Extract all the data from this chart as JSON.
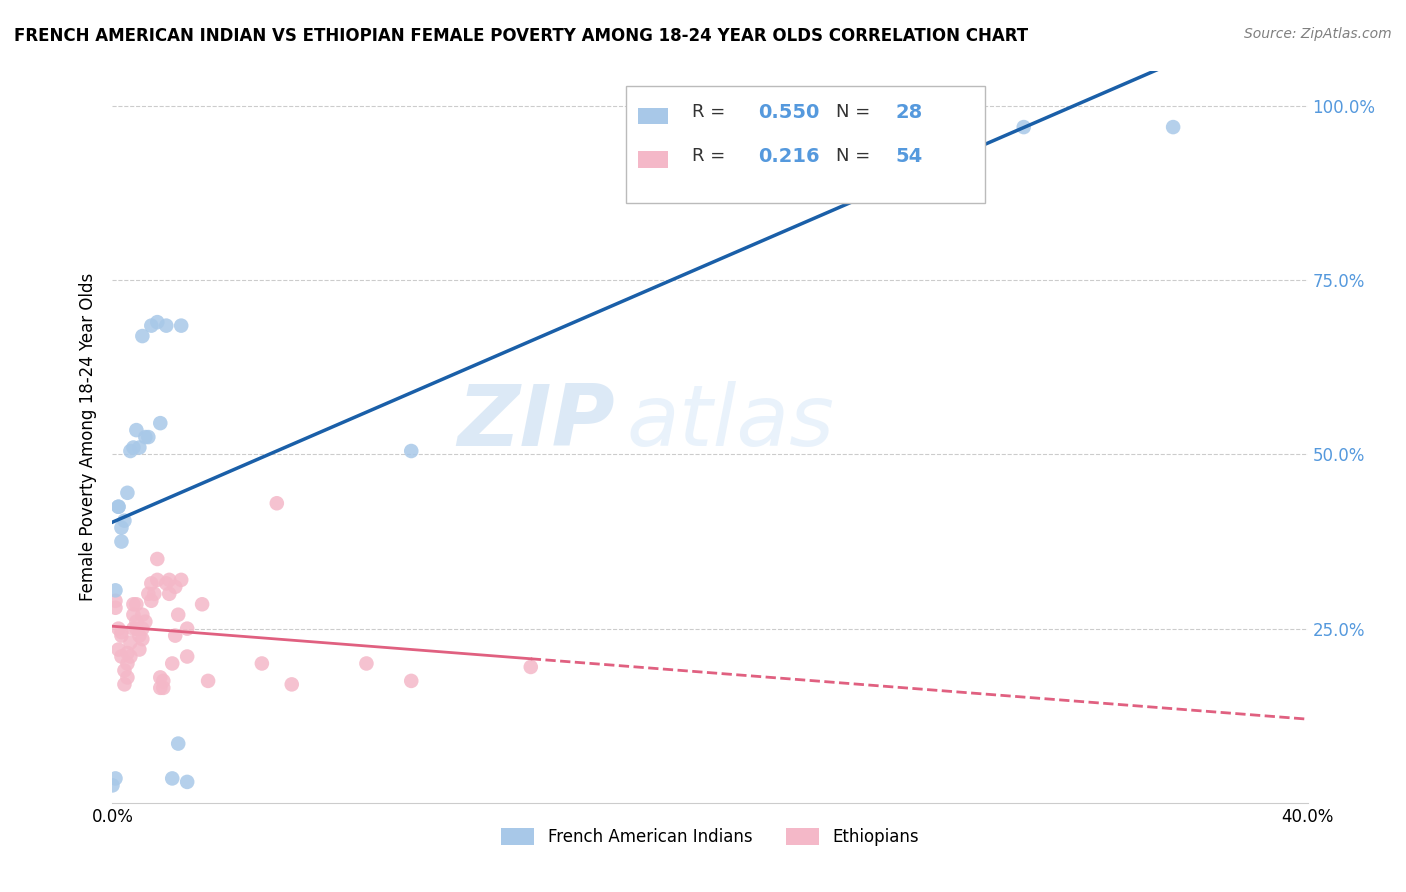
{
  "title": "FRENCH AMERICAN INDIAN VS ETHIOPIAN FEMALE POVERTY AMONG 18-24 YEAR OLDS CORRELATION CHART",
  "source": "Source: ZipAtlas.com",
  "ylabel": "Female Poverty Among 18-24 Year Olds",
  "legend_r1": "0.550",
  "legend_n1": "28",
  "legend_r2": "0.216",
  "legend_n2": "54",
  "legend_label1": "French American Indians",
  "legend_label2": "Ethiopians",
  "blue_color": "#a8c8e8",
  "blue_line_color": "#1a5fa8",
  "pink_color": "#f4b8c8",
  "pink_line_color": "#e06080",
  "blue_scatter_x": [
    0.0,
    0.001,
    0.001,
    0.002,
    0.002,
    0.003,
    0.003,
    0.004,
    0.005,
    0.006,
    0.007,
    0.008,
    0.009,
    0.01,
    0.011,
    0.012,
    0.013,
    0.015,
    0.016,
    0.018,
    0.02,
    0.022,
    0.023,
    0.025,
    0.1,
    0.18,
    0.305,
    0.355
  ],
  "blue_scatter_y": [
    0.025,
    0.305,
    0.035,
    0.425,
    0.425,
    0.375,
    0.395,
    0.405,
    0.445,
    0.505,
    0.51,
    0.535,
    0.51,
    0.67,
    0.525,
    0.525,
    0.685,
    0.69,
    0.545,
    0.685,
    0.035,
    0.085,
    0.685,
    0.03,
    0.505,
    0.965,
    0.97,
    0.97
  ],
  "pink_scatter_x": [
    0.001,
    0.001,
    0.002,
    0.002,
    0.003,
    0.003,
    0.003,
    0.004,
    0.004,
    0.005,
    0.005,
    0.005,
    0.006,
    0.006,
    0.007,
    0.007,
    0.007,
    0.008,
    0.008,
    0.008,
    0.009,
    0.009,
    0.01,
    0.01,
    0.01,
    0.011,
    0.012,
    0.013,
    0.013,
    0.014,
    0.015,
    0.015,
    0.016,
    0.016,
    0.017,
    0.017,
    0.018,
    0.019,
    0.019,
    0.02,
    0.021,
    0.021,
    0.022,
    0.023,
    0.025,
    0.025,
    0.03,
    0.032,
    0.05,
    0.055,
    0.06,
    0.085,
    0.1,
    0.14
  ],
  "pink_scatter_y": [
    0.28,
    0.29,
    0.22,
    0.25,
    0.21,
    0.24,
    0.245,
    0.17,
    0.19,
    0.18,
    0.2,
    0.215,
    0.21,
    0.23,
    0.25,
    0.27,
    0.285,
    0.25,
    0.26,
    0.285,
    0.22,
    0.24,
    0.235,
    0.25,
    0.27,
    0.26,
    0.3,
    0.29,
    0.315,
    0.3,
    0.32,
    0.35,
    0.165,
    0.18,
    0.165,
    0.175,
    0.315,
    0.3,
    0.32,
    0.2,
    0.24,
    0.31,
    0.27,
    0.32,
    0.21,
    0.25,
    0.285,
    0.175,
    0.2,
    0.43,
    0.17,
    0.2,
    0.175,
    0.195
  ],
  "watermark_zip": "ZIP",
  "watermark_atlas": "atlas",
  "xlim": [
    0.0,
    0.4
  ],
  "ylim": [
    0.0,
    1.05
  ],
  "grid_ticks": [
    0.25,
    0.5,
    0.75,
    1.0
  ],
  "right_ytick_labels": [
    "25.0%",
    "50.0%",
    "75.0%",
    "100.0%"
  ],
  "right_ytick_color": "#5599dd"
}
